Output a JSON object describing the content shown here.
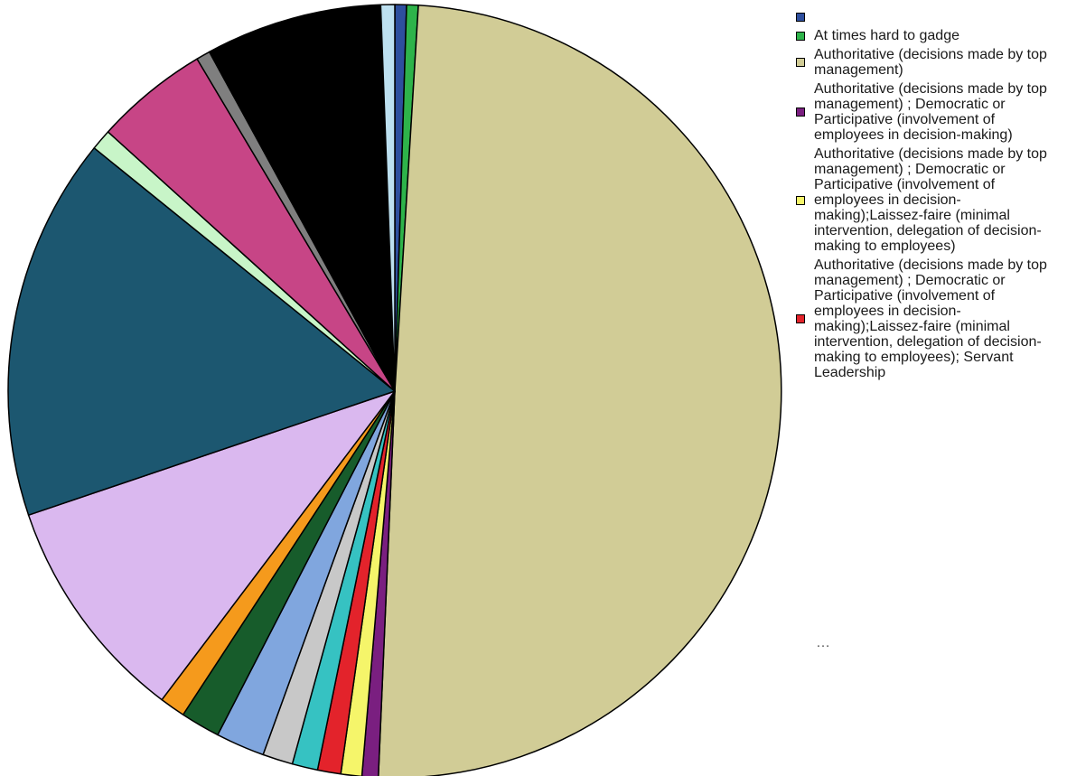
{
  "chart_data": {
    "type": "pie",
    "start_angle_deg": 0,
    "direction": "clockwise",
    "slices": [
      {
        "label": "",
        "value": 0.5,
        "color": "#2e4f9e"
      },
      {
        "label": "At times hard to gadge",
        "value": 0.5,
        "color": "#2eb34a"
      },
      {
        "label": "Authoritative (decisions made by top management)",
        "value": 51.2,
        "color": "#d1cc96"
      },
      {
        "label": "Authoritative (decisions made by top management) ; Democratic or Participative (involvement of employees in decision-making)",
        "value": 0.7,
        "color": "#7a1f80"
      },
      {
        "label": "Authoritative (decisions made by top management) ; Democratic or Participative (involvement of employees in decision-making);Laissez-faire (minimal intervention, delegation of decision-making to employees)",
        "value": 0.9,
        "color": "#f5f56a"
      },
      {
        "label": "Authoritative (decisions made by top management) ; Democratic or Participative (involvement of employees in decision-making);Laissez-faire (minimal intervention, delegation of decision-making to employees); Servant Leadership",
        "value": 1.0,
        "color": "#e3232b"
      },
      {
        "label": "",
        "value": 1.1,
        "color": "#36c2c2"
      },
      {
        "label": "",
        "value": 1.3,
        "color": "#c8c8c8"
      },
      {
        "label": "",
        "value": 2.1,
        "color": "#80a6de"
      },
      {
        "label": "",
        "value": 1.7,
        "color": "#175c2b"
      },
      {
        "label": "",
        "value": 1.1,
        "color": "#f59a1c"
      },
      {
        "label": "",
        "value": 9.8,
        "color": "#dab8ef"
      },
      {
        "label": "",
        "value": 16.5,
        "color": "#1c5770"
      },
      {
        "label": "",
        "value": 0.9,
        "color": "#c8f5c8"
      },
      {
        "label": "",
        "value": 4.9,
        "color": "#c74586"
      },
      {
        "label": "",
        "value": 0.6,
        "color": "#7f7f7f"
      },
      {
        "label": "",
        "value": 7.6,
        "color": "#000000"
      },
      {
        "label": "",
        "value": 0.6,
        "color": "#bde0f0"
      }
    ],
    "legend_visible_count": 6,
    "legend_placement": "right",
    "legend_overflow": "…"
  }
}
